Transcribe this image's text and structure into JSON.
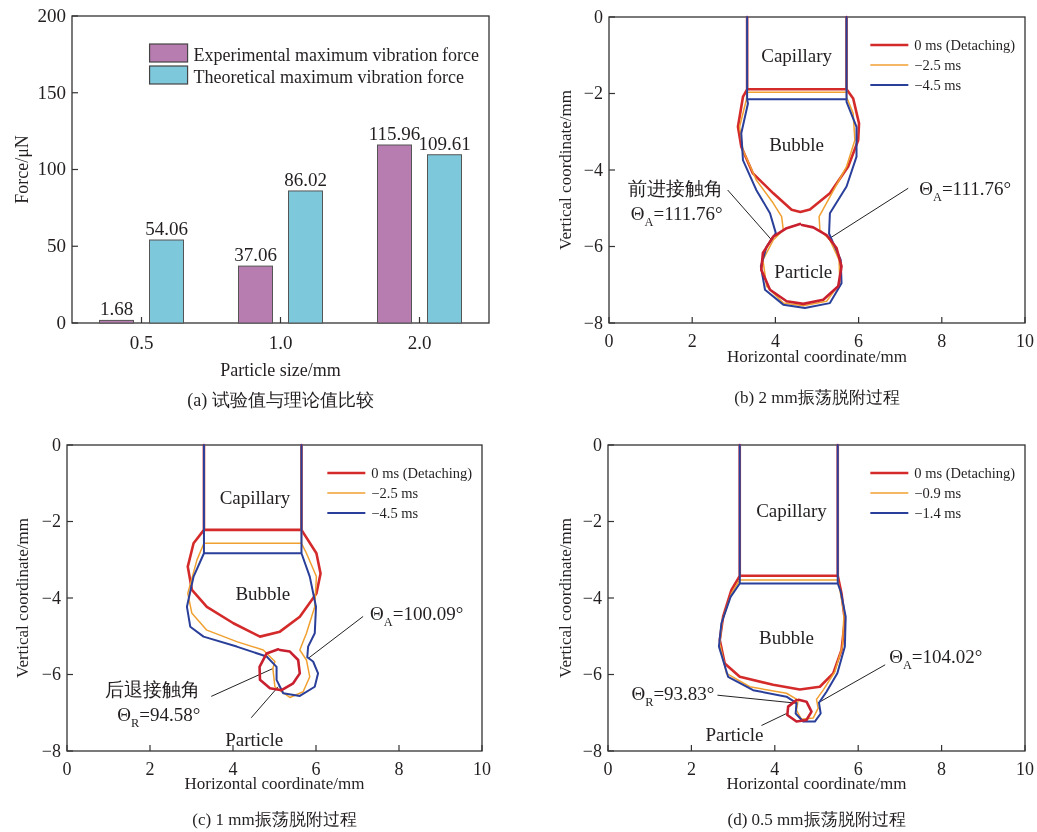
{
  "chart_data": [
    {
      "type": "bar",
      "title": "(a) 试验值与理论值比较",
      "xlabel": "Particle size/mm",
      "ylabel": "Force/μN",
      "categories": [
        "0.5",
        "1.0",
        "2.0"
      ],
      "series": [
        {
          "name": "Experimental maximum vibration force",
          "color": "#b87db0",
          "values": [
            1.68,
            37.06,
            115.96
          ]
        },
        {
          "name": "Theoretical maximum vibration force",
          "color": "#7ec8dc",
          "values": [
            54.06,
            86.02,
            109.61
          ]
        }
      ],
      "ylim": [
        0,
        200
      ],
      "yticks": [
        0,
        50,
        100,
        150,
        200
      ],
      "data_labels": true,
      "legend": "top right"
    },
    {
      "type": "line",
      "title": "(b) 2 mm振荡脱附过程",
      "xlabel": "Horizontal coordinate/mm",
      "ylabel": "Vertical coordinate/mm",
      "series": [
        {
          "name": "0 ms (Detaching)",
          "color": "#d42a2a",
          "x": [
            3.32,
            3.32,
            3.22,
            3.1,
            3.18,
            3.46,
            3.95,
            4.39,
            4.6,
            4.83,
            5.31,
            5.75,
            5.99,
            6.01,
            5.87,
            5.71,
            5.71,
            5.71,
            3.32
          ],
          "values": [
            0,
            -1.89,
            -2.09,
            -2.87,
            -3.39,
            -4.09,
            -4.61,
            -5.04,
            -5.1,
            -5.03,
            -4.61,
            -3.91,
            -3.22,
            -2.78,
            -2.13,
            -1.89,
            0,
            -1.89,
            -1.89
          ]
        },
        {
          "name": "−2.5 ms",
          "color": "#f0a030",
          "x": [
            3.32,
            3.32,
            3.3,
            3.14,
            3.22,
            3.54,
            3.95,
            4.15,
            4.19,
            3.95,
            3.7,
            3.79,
            4.19,
            4.67,
            5.23,
            5.55,
            5.53,
            5.31,
            5.07,
            5.05,
            5.31,
            5.71,
            5.91,
            5.87,
            5.71,
            5.71,
            5.71,
            5.71,
            3.32
          ],
          "values": [
            0,
            -1.97,
            -2.17,
            -2.87,
            -3.48,
            -4.26,
            -4.87,
            -5.22,
            -5.57,
            -5.83,
            -6.35,
            -7.04,
            -7.48,
            -7.55,
            -7.43,
            -6.96,
            -6.35,
            -5.83,
            -5.57,
            -5.22,
            -4.7,
            -3.91,
            -3.22,
            -2.52,
            -2.09,
            -1.97,
            0,
            -1.97,
            -1.97
          ]
        },
        {
          "name": "−4.5 ms",
          "color": "#2a3f9a",
          "x": [
            3.32,
            3.32,
            3.34,
            3.18,
            3.22,
            3.54,
            3.87,
            4.01,
            3.79,
            3.65,
            3.75,
            4.19,
            4.71,
            5.31,
            5.59,
            5.57,
            5.39,
            5.29,
            5.31,
            5.71,
            5.95,
            5.95,
            5.71,
            5.71,
            5.71,
            5.71,
            3.32
          ],
          "values": [
            0,
            -2.15,
            -2.26,
            -3.04,
            -3.74,
            -4.52,
            -5.13,
            -5.65,
            -6.0,
            -6.52,
            -7.13,
            -7.52,
            -7.61,
            -7.48,
            -6.96,
            -6.35,
            -5.91,
            -5.66,
            -5.13,
            -4.43,
            -3.65,
            -2.87,
            -2.22,
            -2.15,
            0,
            -2.15,
            -2.15
          ]
        },
        {
          "color": "#c8202e",
          "x": [
            4.59,
            4.27,
            3.95,
            3.7,
            3.66,
            3.87,
            4.27,
            4.67,
            5.15,
            5.51,
            5.59,
            5.47,
            5.23,
            4.91,
            4.64
          ],
          "values": [
            -5.41,
            -5.52,
            -5.74,
            -6.17,
            -6.61,
            -7.13,
            -7.43,
            -7.5,
            -7.39,
            -7.04,
            -6.52,
            -6.04,
            -5.7,
            -5.5,
            -5.44
          ]
        }
      ],
      "xlim": [
        0,
        10
      ],
      "xticks": [
        0,
        2,
        4,
        6,
        8,
        10
      ],
      "ylim": [
        -8,
        0
      ],
      "yticks": [
        {
          "value": -8,
          "label": "−8"
        },
        {
          "value": -6,
          "label": "−6"
        },
        {
          "value": -4,
          "label": "−4"
        },
        {
          "value": -2,
          "label": "−2"
        },
        0
      ],
      "legend": "top right",
      "annotations": [
        "Capillary",
        "Bubble",
        "Particle",
        {
          "text": "前进接触角\nΘ$_{A}$=111.76°",
          "x": 3.91,
          "y": -5.83
        },
        {
          "text": "Θ$_{A}$=111.76°",
          "x": 5.27,
          "y": -5.81
        }
      ]
    },
    {
      "type": "line",
      "title": "(c) 1 mm振荡脱附过程",
      "xlabel": "Horizontal coordinate/mm",
      "ylabel": "Vertical coordinate/mm",
      "series": [
        {
          "name": "0 ms (Detaching)",
          "color": "#d42a2a",
          "x": [
            3.3,
            3.3,
            3.05,
            2.91,
            3.01,
            3.37,
            4.01,
            4.65,
            5.13,
            5.61,
            6.01,
            6.11,
            6.01,
            5.65,
            5.65,
            5.65,
            3.3
          ],
          "values": [
            0,
            -2.22,
            -2.57,
            -3.18,
            -3.79,
            -4.23,
            -4.66,
            -5.01,
            -4.88,
            -4.49,
            -3.88,
            -3.36,
            -2.83,
            -2.22,
            0,
            -2.22,
            -2.22
          ]
        },
        {
          "name": "−2.5 ms",
          "color": "#f0a030",
          "x": [
            3.3,
            3.3,
            3.13,
            2.91,
            3.01,
            3.37,
            4.09,
            4.73,
            5.01,
            4.96,
            5.01,
            5.37,
            5.69,
            5.85,
            5.77,
            5.61,
            5.77,
            5.97,
            6.01,
            5.77,
            5.65,
            5.65,
            5.65,
            3.3
          ],
          "values": [
            0,
            -2.57,
            -3.01,
            -3.88,
            -4.4,
            -4.84,
            -5.14,
            -5.36,
            -5.66,
            -5.84,
            -6.32,
            -6.6,
            -6.45,
            -6.06,
            -5.62,
            -5.36,
            -4.92,
            -4.23,
            -3.44,
            -2.83,
            -2.57,
            0,
            -2.57,
            -2.57
          ]
        },
        {
          "name": "−4.5 ms",
          "color": "#2a3f9a",
          "x": [
            3.3,
            3.3,
            3.05,
            2.89,
            2.97,
            3.29,
            4.09,
            4.81,
            5.05,
            5.05,
            5.21,
            5.61,
            5.97,
            6.05,
            5.93,
            5.79,
            5.81,
            5.97,
            6.0,
            5.85,
            5.65,
            5.65,
            5.65,
            3.3
          ],
          "values": [
            0,
            -2.83,
            -3.44,
            -4.23,
            -4.75,
            -5.01,
            -5.27,
            -5.53,
            -5.8,
            -6.14,
            -6.49,
            -6.56,
            -6.32,
            -5.97,
            -5.66,
            -5.55,
            -5.27,
            -4.92,
            -4.23,
            -3.44,
            -2.83,
            0,
            -2.83,
            -2.83
          ]
        },
        {
          "color": "#c8202e",
          "x": [
            5.09,
            4.81,
            4.64,
            4.65,
            4.89,
            5.17,
            5.45,
            5.61,
            5.57,
            5.37,
            5.13
          ],
          "values": [
            -5.34,
            -5.45,
            -5.8,
            -6.14,
            -6.36,
            -6.41,
            -6.23,
            -5.97,
            -5.62,
            -5.4,
            -5.36
          ]
        }
      ],
      "xlim": [
        0,
        10
      ],
      "xticks": [
        0,
        2,
        4,
        6,
        8,
        10
      ],
      "ylim": [
        -8,
        0
      ],
      "yticks": [
        {
          "value": -8,
          "label": "−8"
        },
        {
          "value": -6,
          "label": "−6"
        },
        {
          "value": -4,
          "label": "−4"
        },
        {
          "value": -2,
          "label": "−2"
        },
        0
      ],
      "legend": "top right",
      "annotations": [
        "Capillary",
        "Bubble",
        {
          "text": "Θ$_{A}$=100.09°",
          "x": 5.81,
          "y": -5.58
        },
        {
          "text": "后退接触角\nΘ$_{R}$=94.58°",
          "x": 4.97,
          "y": -5.84
        },
        {
          "text": "Particle",
          "x": 5.09,
          "y": -6.32
        }
      ]
    },
    {
      "type": "line",
      "title": "(d) 0.5 mm振荡脱附过程",
      "xlabel": "Horizontal coordinate/mm",
      "ylabel": "Vertical coordinate/mm",
      "series": [
        {
          "name": "0 ms (Detaching)",
          "color": "#d42a2a",
          "x": [
            3.16,
            3.16,
            2.96,
            2.76,
            2.68,
            2.8,
            3.16,
            3.96,
            4.6,
            5.08,
            5.4,
            5.6,
            5.68,
            5.6,
            5.51,
            5.51,
            5.51,
            3.16
          ],
          "values": [
            0,
            -3.42,
            -3.79,
            -4.49,
            -5.1,
            -5.71,
            -6.06,
            -6.27,
            -6.39,
            -6.32,
            -5.97,
            -5.36,
            -4.58,
            -3.88,
            -3.42,
            0,
            -3.42,
            -3.42
          ]
        },
        {
          "name": "−0.9 ms",
          "color": "#f0a030",
          "x": [
            3.16,
            3.16,
            2.96,
            2.74,
            2.68,
            2.84,
            3.4,
            4.28,
            4.56,
            4.52,
            4.64,
            4.92,
            5.04,
            5.0,
            5.16,
            5.44,
            5.62,
            5.66,
            5.56,
            5.51,
            5.51,
            5.51,
            3.16
          ],
          "values": [
            0,
            -3.53,
            -3.88,
            -4.58,
            -5.19,
            -5.97,
            -6.32,
            -6.49,
            -6.67,
            -6.93,
            -7.17,
            -7.14,
            -6.88,
            -6.65,
            -6.41,
            -5.93,
            -5.27,
            -4.4,
            -3.79,
            -3.53,
            0,
            -3.53,
            -3.53
          ]
        },
        {
          "name": "−1.4 ms",
          "color": "#2a3f9a",
          "x": [
            3.16,
            3.16,
            2.94,
            2.72,
            2.66,
            2.88,
            3.48,
            4.28,
            4.52,
            4.5,
            4.68,
            4.96,
            5.1,
            5.06,
            5.24,
            5.5,
            5.68,
            5.7,
            5.58,
            5.51,
            5.51,
            5.51,
            3.16
          ],
          "values": [
            0,
            -3.62,
            -3.97,
            -4.66,
            -5.27,
            -6.06,
            -6.41,
            -6.58,
            -6.75,
            -7.02,
            -7.23,
            -7.23,
            -7.02,
            -6.74,
            -6.45,
            -5.97,
            -5.27,
            -4.49,
            -3.83,
            -3.62,
            0,
            -3.62,
            -3.62
          ]
        },
        {
          "color": "#c8202e",
          "x": [
            4.52,
            4.32,
            4.3,
            4.52,
            4.76,
            4.88,
            4.76,
            4.57
          ],
          "values": [
            -6.67,
            -6.84,
            -7.06,
            -7.23,
            -7.19,
            -6.97,
            -6.71,
            -6.66
          ]
        }
      ],
      "xlim": [
        0,
        10
      ],
      "xticks": [
        0,
        2,
        4,
        6,
        8,
        10
      ],
      "ylim": [
        -8,
        0
      ],
      "yticks": [
        {
          "value": -8,
          "label": "−8"
        },
        {
          "value": -6,
          "label": "−6"
        },
        {
          "value": -4,
          "label": "−4"
        },
        {
          "value": -2,
          "label": "−2"
        },
        0
      ],
      "legend": "top right",
      "annotations": [
        "Capillary",
        "Bubble",
        {
          "text": "Θ$_{R}$=93.83°",
          "x": 4.52,
          "y": -6.75
        },
        {
          "text": "Θ$_{A}$=104.02°",
          "x": 5.04,
          "y": -6.74
        },
        {
          "text": "Particle",
          "x": 4.28,
          "y": -7.02
        }
      ]
    }
  ]
}
